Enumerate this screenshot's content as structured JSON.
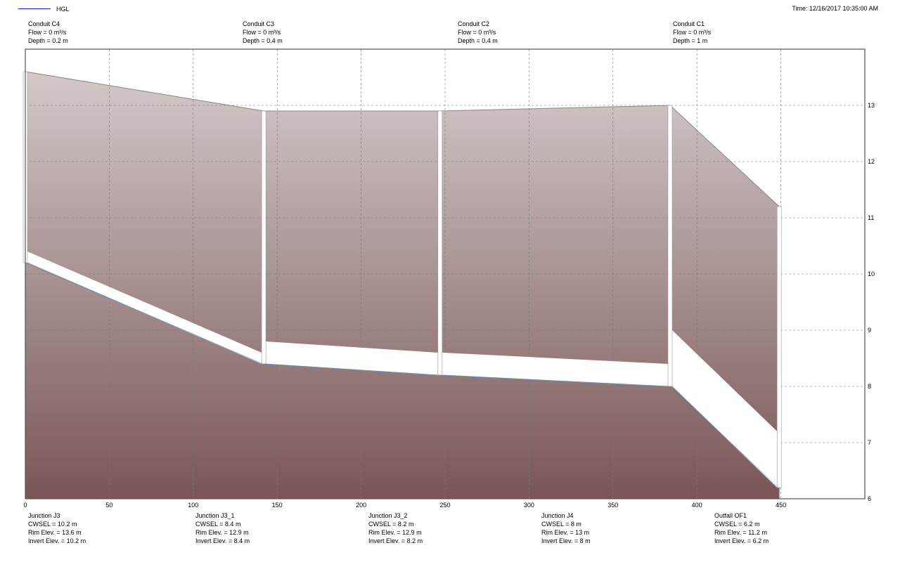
{
  "legend": {
    "label": "HGL",
    "color": "#1a1adb"
  },
  "time": {
    "label": "Time:",
    "value": "12/16/2017 10:35:00 AM"
  },
  "conduits": [
    {
      "name": "Conduit C4",
      "flow": "Flow = 0 m³/s",
      "depth": "Depth = 0.2 m"
    },
    {
      "name": "Conduit C3",
      "flow": "Flow = 0 m³/s",
      "depth": "Depth = 0.4 m"
    },
    {
      "name": "Conduit C2",
      "flow": "Flow = 0 m³/s",
      "depth": "Depth = 0.4 m"
    },
    {
      "name": "Conduit C1",
      "flow": "Flow = 0 m³/s",
      "depth": "Depth = 1 m"
    }
  ],
  "nodes": [
    {
      "name": "Junction J3",
      "cwsel": "CWSEL = 10.2 m",
      "rim": "Rim Elev. = 13.6 m",
      "invert": "Invert Elev. = 10.2 m"
    },
    {
      "name": "Junction J3_1",
      "cwsel": "CWSEL = 8.4 m",
      "rim": "Rim Elev. = 12.9 m",
      "invert": "Invert Elev. = 8.4 m"
    },
    {
      "name": "Junction J3_2",
      "cwsel": "CWSEL = 8.2 m",
      "rim": "Rim Elev. = 12.9 m",
      "invert": "Invert Elev. = 8.2 m"
    },
    {
      "name": "Junction J4",
      "cwsel": "CWSEL = 8 m",
      "rim": "Rim Elev. = 13 m",
      "invert": "Invert Elev. = 8 m"
    },
    {
      "name": "Outfall OF1",
      "cwsel": "CWSEL = 6.2 m",
      "rim": "Rim Elev. = 11.2 m",
      "invert": "Invert Elev. = 6.2 m"
    }
  ],
  "chart_data": {
    "type": "area",
    "title": "",
    "xlabel": "",
    "ylabel": "",
    "xlim": [
      0,
      500
    ],
    "ylim": [
      6,
      14
    ],
    "x_ticks": [
      0,
      50,
      100,
      150,
      200,
      250,
      300,
      350,
      400,
      450
    ],
    "y_ticks": [
      6,
      7,
      8,
      9,
      10,
      11,
      12,
      13
    ],
    "grid": true,
    "legend_position": "top-left",
    "colors": {
      "ground_top": "#d3c9c9",
      "ground_bottom": "#7a5656",
      "outline": "#888888",
      "hgl": "#1a1adb",
      "background": "#ffffff"
    },
    "nodes": [
      {
        "name": "J3",
        "station": 0,
        "invert": 10.2,
        "rim": 13.6,
        "cwsel": 10.2
      },
      {
        "name": "J3_1",
        "station": 142,
        "invert": 8.4,
        "rim": 12.9,
        "cwsel": 8.4
      },
      {
        "name": "J3_2",
        "station": 247,
        "invert": 8.2,
        "rim": 12.9,
        "cwsel": 8.2
      },
      {
        "name": "J4",
        "station": 384,
        "invert": 8.0,
        "rim": 13.0,
        "cwsel": 8.0
      },
      {
        "name": "OF1",
        "station": 449,
        "invert": 6.2,
        "rim": 11.2,
        "cwsel": 6.2
      }
    ],
    "conduits": [
      {
        "name": "C4",
        "from": "J3",
        "to": "J3_1",
        "depth": 0.2,
        "flow": 0
      },
      {
        "name": "C3",
        "from": "J3_1",
        "to": "J3_2",
        "depth": 0.4,
        "flow": 0
      },
      {
        "name": "C2",
        "from": "J3_2",
        "to": "J4",
        "depth": 0.4,
        "flow": 0
      },
      {
        "name": "C1",
        "from": "J4",
        "to": "OF1",
        "depth": 1.0,
        "flow": 0
      }
    ],
    "series": [
      {
        "name": "HGL",
        "x": [
          0,
          142,
          247,
          384,
          449
        ],
        "y": [
          10.2,
          8.4,
          8.2,
          8.0,
          6.2
        ]
      }
    ]
  }
}
